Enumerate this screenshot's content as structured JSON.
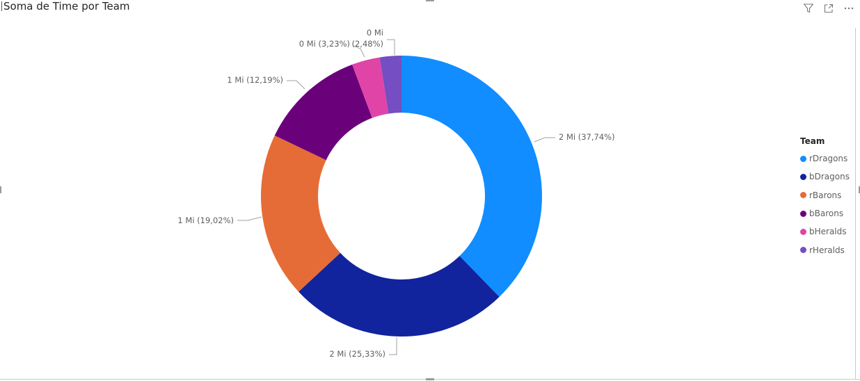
{
  "visual": {
    "title": "Soma de Time por Team",
    "icons": [
      "filter-icon",
      "focus-mode-icon",
      "more-options-icon"
    ]
  },
  "colors": {
    "rDragons": "#118DFF",
    "bDragons": "#12239E",
    "rBarons": "#E66C37",
    "bBarons": "#6B007B",
    "bHeralds": "#E044A7",
    "rHeralds": "#744EC2",
    "label_text": "#605e5c",
    "leader_line": "#a0a0a0"
  },
  "chart_data": {
    "type": "pie",
    "variant": "donut",
    "title": "Soma de Time por Team",
    "legend_title": "Team",
    "legend_position": "right",
    "categories": [
      "rDragons",
      "bDragons",
      "rBarons",
      "bBarons",
      "bHeralds",
      "rHeralds"
    ],
    "percent_values": [
      37.74,
      25.33,
      19.02,
      12.19,
      3.23,
      2.48
    ],
    "data_labels": [
      "2 Mi (37,74%)",
      "2 Mi (25,33%)",
      "1 Mi (19,02%)",
      "1 Mi (12,19%)",
      "0 Mi (3,23%)",
      "0 Mi (2,48%)"
    ],
    "start_angle_deg": 0,
    "direction": "clockwise"
  }
}
